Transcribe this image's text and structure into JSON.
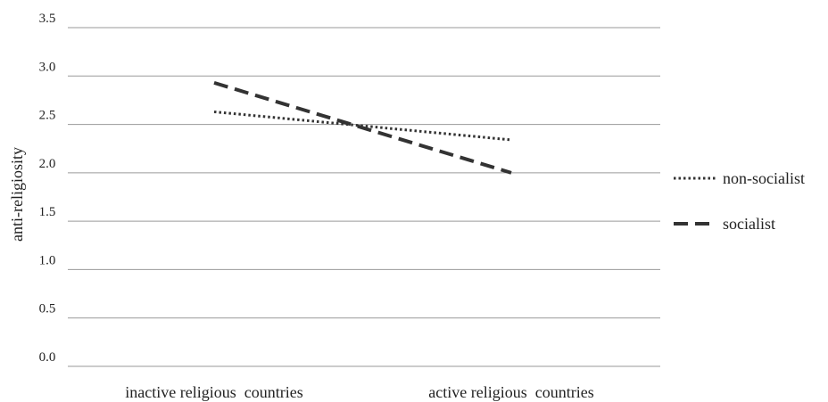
{
  "chart_data": {
    "type": "line",
    "title": "",
    "xlabel": "",
    "ylabel": "anti-religiosity",
    "categories": [
      "inactive religious  countries",
      "active religious  countries"
    ],
    "ylim": [
      0,
      3.5
    ],
    "yticks": [
      "0.0",
      "0.5",
      "1.0",
      "1.5",
      "2.0",
      "2.5",
      "3.0",
      "3.5"
    ],
    "grid": true,
    "legend_position": "right",
    "series": [
      {
        "name": "non-socialist",
        "values": [
          2.63,
          2.34
        ],
        "style": "dotted",
        "color": "#333333"
      },
      {
        "name": "socialist",
        "values": [
          2.93,
          2.0
        ],
        "style": "dashed",
        "color": "#333333"
      }
    ]
  }
}
